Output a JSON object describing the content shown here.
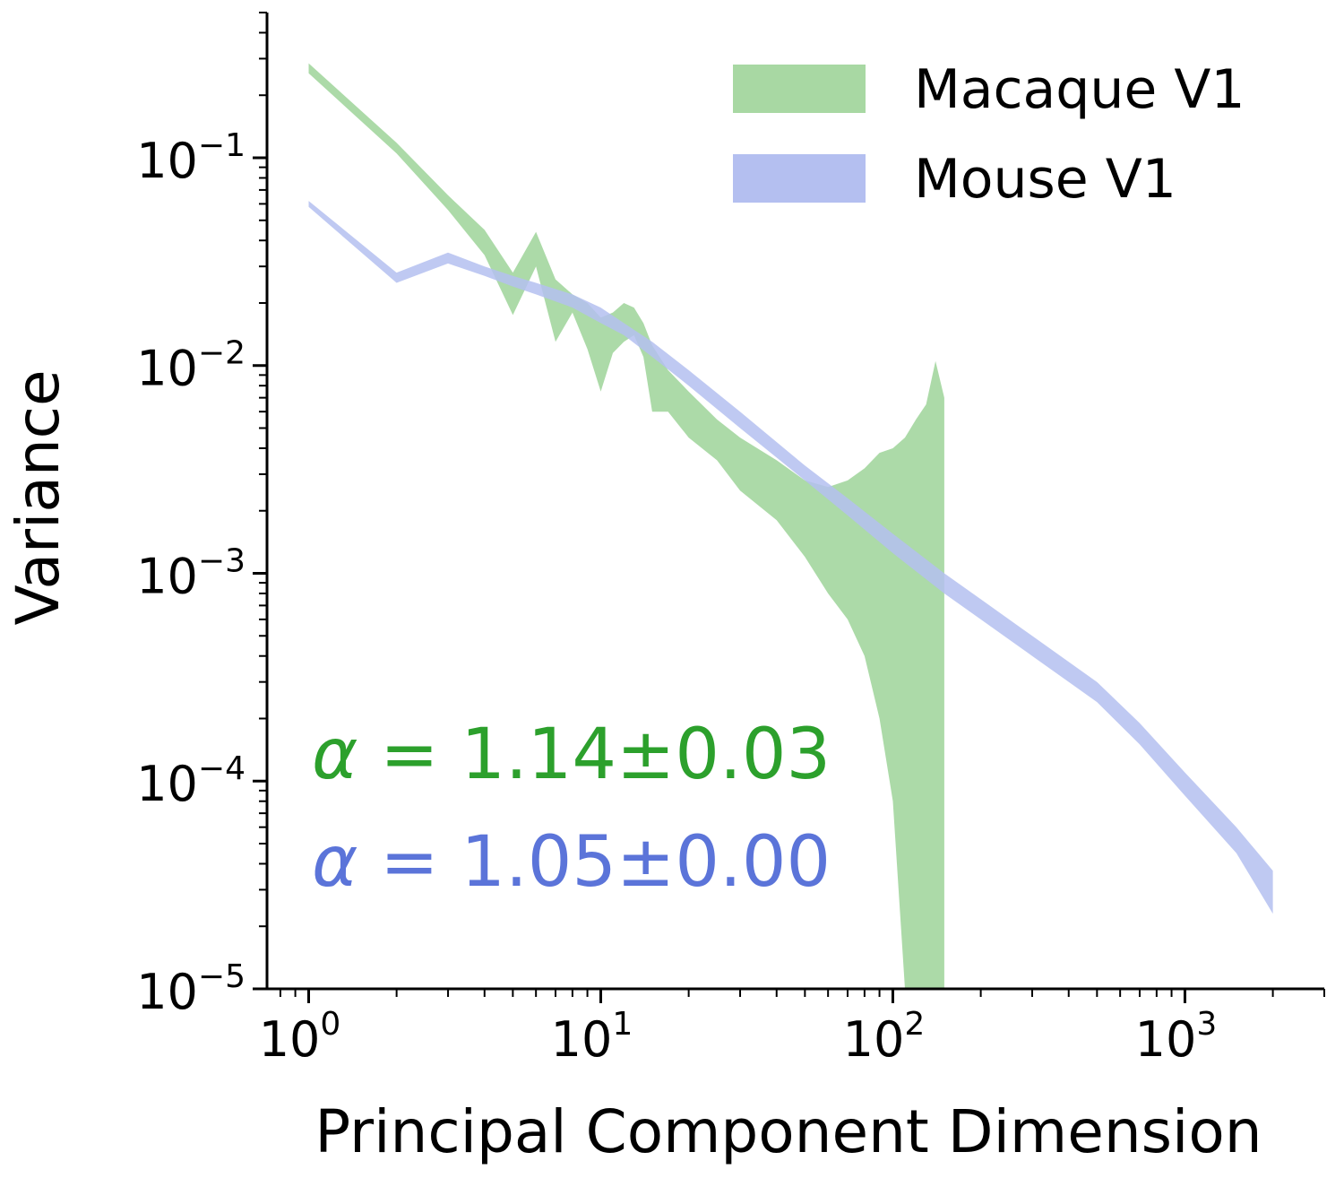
{
  "chart_data": {
    "type": "area",
    "xscale": "log",
    "yscale": "log",
    "xlabel": "Principal Component Dimension",
    "ylabel": "Variance",
    "xlim": [
      0.72,
      3000
    ],
    "ylim": [
      1e-05,
      0.5
    ],
    "x_ticks": [
      {
        "value": 1,
        "base": "10",
        "exp": "0"
      },
      {
        "value": 10,
        "base": "10",
        "exp": "1"
      },
      {
        "value": 100,
        "base": "10",
        "exp": "2"
      },
      {
        "value": 1000,
        "base": "10",
        "exp": "3"
      }
    ],
    "y_ticks": [
      {
        "value": 0.1,
        "base": "10",
        "exp": "−1"
      },
      {
        "value": 0.01,
        "base": "10",
        "exp": "−2"
      },
      {
        "value": 0.001,
        "base": "10",
        "exp": "−3"
      },
      {
        "value": 0.0001,
        "base": "10",
        "exp": "−4"
      },
      {
        "value": 1e-05,
        "base": "10",
        "exp": "−5"
      }
    ],
    "grid": false,
    "legend_position": "top-right",
    "series": [
      {
        "name": "Macaque V1",
        "color": "#a8d8a3",
        "x": [
          1,
          2,
          3,
          4,
          5,
          6,
          7,
          8,
          9,
          10,
          11,
          12,
          13,
          14,
          15,
          17,
          20,
          25,
          30,
          40,
          50,
          60,
          70,
          80,
          90,
          100,
          110,
          120,
          130,
          140,
          150
        ],
        "upper": [
          0.285,
          0.118,
          0.066,
          0.045,
          0.028,
          0.044,
          0.026,
          0.022,
          0.02,
          0.017,
          0.018,
          0.02,
          0.019,
          0.016,
          0.0125,
          0.0095,
          0.0075,
          0.0055,
          0.0045,
          0.0035,
          0.0028,
          0.0026,
          0.0028,
          0.0032,
          0.0038,
          0.004,
          0.0045,
          0.0055,
          0.0065,
          0.0105,
          0.007
        ],
        "lower": [
          0.255,
          0.105,
          0.056,
          0.034,
          0.0175,
          0.03,
          0.013,
          0.018,
          0.012,
          0.0075,
          0.0115,
          0.013,
          0.014,
          0.011,
          0.006,
          0.006,
          0.0045,
          0.0035,
          0.0025,
          0.0018,
          0.0012,
          0.0008,
          0.0006,
          0.0004,
          0.0002,
          8e-05,
          1e-05,
          1e-05,
          1e-05,
          1e-05,
          1e-05
        ]
      },
      {
        "name": "Mouse V1",
        "color": "#b4bff0",
        "x": [
          1,
          2,
          3,
          4,
          5,
          6,
          8,
          10,
          12,
          15,
          20,
          30,
          50,
          70,
          100,
          150,
          200,
          300,
          500,
          700,
          1000,
          1500,
          2000
        ],
        "upper": [
          0.062,
          0.028,
          0.035,
          0.03,
          0.027,
          0.025,
          0.022,
          0.019,
          0.016,
          0.013,
          0.0095,
          0.006,
          0.0033,
          0.0023,
          0.00155,
          0.001,
          0.00075,
          0.0005,
          0.0003,
          0.00019,
          0.00011,
          6e-05,
          3.7e-05
        ],
        "lower": [
          0.058,
          0.025,
          0.031,
          0.027,
          0.024,
          0.022,
          0.019,
          0.016,
          0.014,
          0.011,
          0.008,
          0.005,
          0.0028,
          0.0019,
          0.00125,
          0.0008,
          0.0006,
          0.0004,
          0.00024,
          0.00015,
          8.5e-05,
          4.5e-05,
          2.3e-05
        ]
      }
    ],
    "annotations": [
      {
        "alpha_symbol": "α",
        "text": "= 1.14±0.03",
        "color": "#2ca02c"
      },
      {
        "alpha_symbol": "α",
        "text": "= 1.05±0.00",
        "color": "#5b74d9"
      }
    ]
  }
}
